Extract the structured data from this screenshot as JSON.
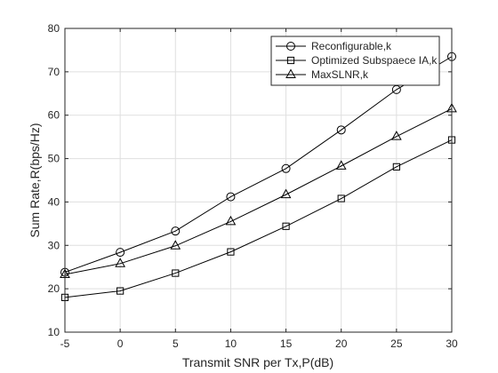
{
  "chart_data": {
    "type": "line",
    "title": "",
    "xlabel": "Transmit SNR per Tx,P(dB)",
    "ylabel": "Sum Rate,R(bps/Hz)",
    "xlim": [
      -5,
      30
    ],
    "ylim": [
      10,
      80
    ],
    "xticks": [
      "-5",
      "0",
      "5",
      "10",
      "15",
      "20",
      "25",
      "30"
    ],
    "yticks": [
      "10",
      "20",
      "30",
      "40",
      "50",
      "60",
      "70",
      "80"
    ],
    "grid": true,
    "legend_position": "top-right",
    "x": [
      -5,
      0,
      5,
      10,
      15,
      20,
      25,
      30
    ],
    "series": [
      {
        "name": "Reconfigurable,k",
        "marker": "circle",
        "color": "#000000",
        "values": [
          23.8,
          28.4,
          33.3,
          41.2,
          47.7,
          56.6,
          65.9,
          73.5
        ]
      },
      {
        "name": "Optimized Subspaece IA,k",
        "marker": "square",
        "color": "#000000",
        "values": [
          18.0,
          19.5,
          23.6,
          28.5,
          34.4,
          40.8,
          48.1,
          54.3
        ]
      },
      {
        "name": "MaxSLNR,k",
        "marker": "triangle",
        "color": "#000000",
        "values": [
          23.3,
          25.8,
          29.9,
          35.5,
          41.7,
          48.3,
          55.1,
          61.5
        ]
      }
    ]
  }
}
